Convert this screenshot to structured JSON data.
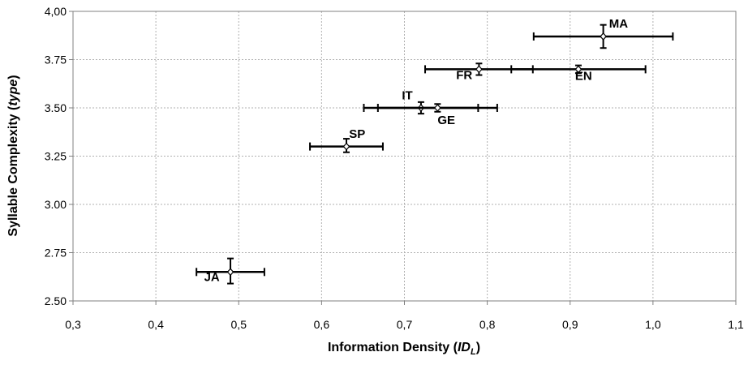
{
  "chart_data": {
    "type": "scatter",
    "xlabel_main": "Information Density (",
    "xlabel_italic": "ID",
    "xlabel_sub": "L",
    "xlabel_end": ")",
    "ylabel_main": "Syllable Complexity (",
    "ylabel_italic": "type",
    "ylabel_end": ")",
    "xlim": [
      0.3,
      1.1
    ],
    "ylim": [
      2.5,
      4.0
    ],
    "x_ticks": [
      0.3,
      0.4,
      0.5,
      0.6,
      0.7,
      0.8,
      0.9,
      1.0,
      1.1
    ],
    "x_tick_labels": [
      "0,3",
      "0,4",
      "0,5",
      "0,6",
      "0,7",
      "0,8",
      "0,9",
      "1,0",
      "1,1"
    ],
    "y_ticks": [
      2.5,
      2.75,
      3.0,
      3.25,
      3.5,
      3.75,
      4.0
    ],
    "y_tick_labels": [
      "2.50",
      "2.75",
      "3.00",
      "3.25",
      "3.50",
      "3.75",
      "4,00"
    ],
    "grid": true,
    "points": [
      {
        "label": "JA",
        "x": 0.49,
        "y": 2.65,
        "x_err": [
          0.449,
          0.531
        ],
        "y_err": [
          2.59,
          2.72
        ],
        "label_dx": -0.013,
        "label_dy": -0.047,
        "anchor": "end"
      },
      {
        "label": "SP",
        "x": 0.63,
        "y": 3.3,
        "x_err": [
          0.586,
          0.674
        ],
        "y_err": [
          3.27,
          3.34
        ],
        "label_dx": 0.013,
        "label_dy": 0.045,
        "anchor": "middle"
      },
      {
        "label": "IT",
        "x": 0.72,
        "y": 3.5,
        "x_err": [
          0.651,
          0.789
        ],
        "y_err": [
          3.47,
          3.53
        ],
        "label_dx": -0.01,
        "label_dy": 0.045,
        "anchor": "end"
      },
      {
        "label": "GE",
        "x": 0.74,
        "y": 3.5,
        "x_err": [
          0.668,
          0.812
        ],
        "y_err": [
          3.48,
          3.52
        ],
        "label_dx": 0.0,
        "label_dy": -0.085,
        "anchor": "start"
      },
      {
        "label": "FR",
        "x": 0.79,
        "y": 3.7,
        "x_err": [
          0.725,
          0.855
        ],
        "y_err": [
          3.67,
          3.73
        ],
        "label_dx": -0.008,
        "label_dy": -0.05,
        "anchor": "end"
      },
      {
        "label": "EN",
        "x": 0.91,
        "y": 3.7,
        "x_err": [
          0.829,
          0.991
        ],
        "y_err": [
          3.68,
          3.72
        ],
        "label_dx": -0.004,
        "label_dy": -0.055,
        "anchor": "start"
      },
      {
        "label": "MA",
        "x": 0.94,
        "y": 3.87,
        "x_err": [
          0.856,
          1.024
        ],
        "y_err": [
          3.81,
          3.93
        ],
        "label_dx": 0.007,
        "label_dy": 0.045,
        "anchor": "start"
      }
    ]
  }
}
